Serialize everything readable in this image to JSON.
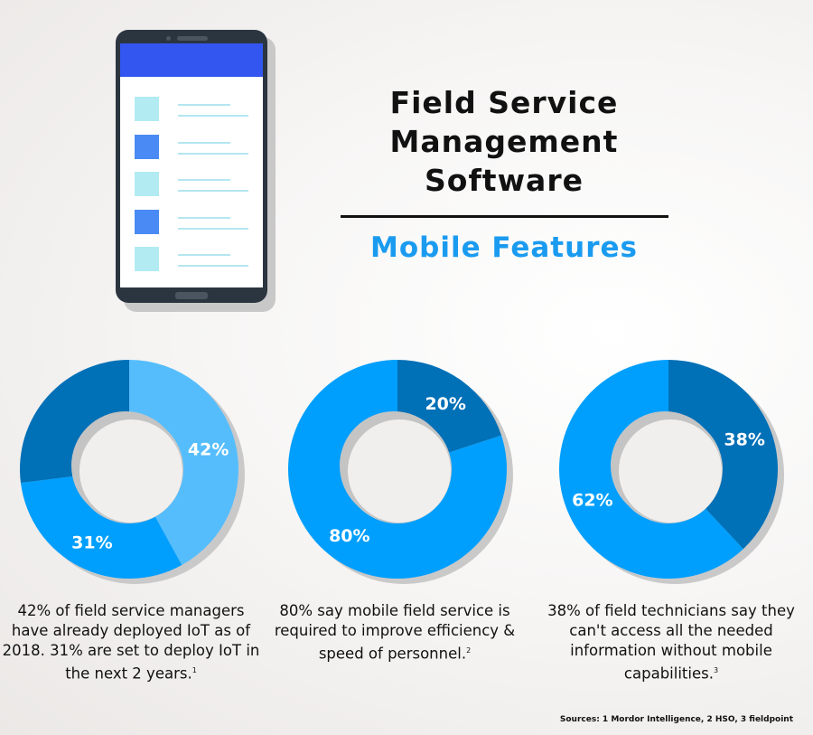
{
  "header": {
    "title_lines": [
      "Field Service",
      "Management",
      "Software"
    ],
    "subtitle": "Mobile Features"
  },
  "colors": {
    "light": "#56bdfc",
    "mid": "#009ffd",
    "dark": "#0070b7",
    "subtitle": "#1a9bf0",
    "phone_header": "#3256ef"
  },
  "phone": {
    "icon": "smartphone-list-icon",
    "rows": [
      "light",
      "dark",
      "light",
      "dark",
      "light"
    ]
  },
  "chart_data": [
    {
      "type": "pie",
      "slices": [
        {
          "label": "42%",
          "value": 42,
          "color": "#56bdfc"
        },
        {
          "label": "31%",
          "value": 31,
          "color": "#009ffd"
        },
        {
          "label": "",
          "value": 27,
          "color": "#0070b7"
        }
      ]
    },
    {
      "type": "pie",
      "slices": [
        {
          "label": "20%",
          "value": 20,
          "color": "#0070b7"
        },
        {
          "label": "80%",
          "value": 80,
          "color": "#009ffd"
        }
      ]
    },
    {
      "type": "pie",
      "slices": [
        {
          "label": "38%",
          "value": 38,
          "color": "#0070b7"
        },
        {
          "label": "62%",
          "value": 62,
          "color": "#009ffd"
        }
      ]
    }
  ],
  "captions": [
    {
      "text": "42% of field service managers have already deployed IoT as of 2018. 31% are set to deploy IoT in the next 2 years.",
      "note": "1"
    },
    {
      "text": "80% say mobile field service is required to improve efficiency & speed of personnel.",
      "note": "2"
    },
    {
      "text": "38% of field technicians say they can't access all the needed information without mobile capabilities.",
      "note": "3"
    }
  ],
  "sources": "Sources: 1 Mordor Intelligence, 2 HSO, 3 fieldpoint"
}
